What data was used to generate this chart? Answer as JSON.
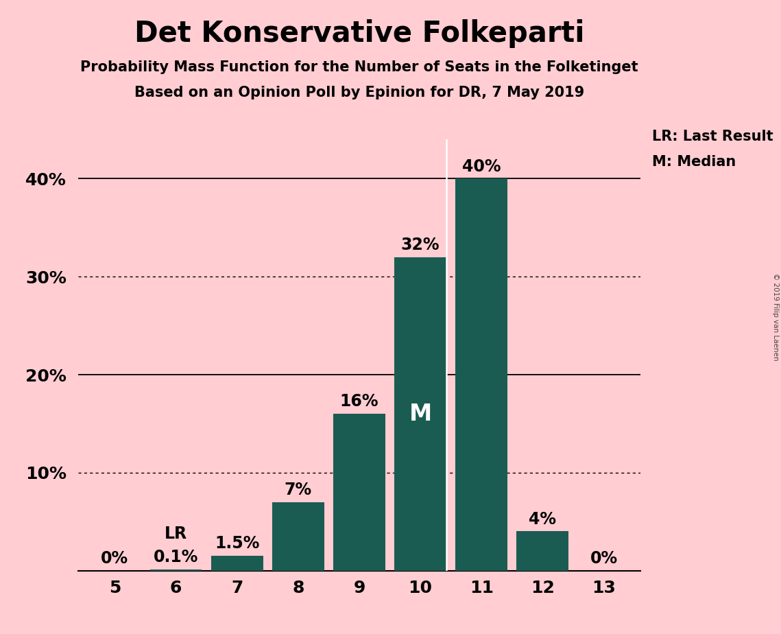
{
  "title": "Det Konservative Folkeparti",
  "subtitle1": "Probability Mass Function for the Number of Seats in the Folketinget",
  "subtitle2": "Based on an Opinion Poll by Epinion for DR, 7 May 2019",
  "copyright": "© 2019 Filip van Laenen",
  "categories": [
    5,
    6,
    7,
    8,
    9,
    10,
    11,
    12,
    13
  ],
  "values": [
    0.0,
    0.1,
    1.5,
    7.0,
    16.0,
    32.0,
    40.0,
    4.0,
    0.0
  ],
  "bar_color": "#1a5c52",
  "background_color": "#ffcdd2",
  "bar_labels": [
    "0%",
    "0.1%",
    "1.5%",
    "7%",
    "16%",
    "32%",
    "40%",
    "4%",
    "0%"
  ],
  "median_bar": 10,
  "lr_bar": 6,
  "ylim_max": 44,
  "ytick_vals": [
    10,
    20,
    30,
    40
  ],
  "ytick_labels": [
    "10%",
    "20%",
    "30%",
    "40%"
  ],
  "solid_gridlines": [
    20,
    40
  ],
  "dotted_gridlines": [
    10,
    30
  ],
  "legend_lr": "LR: Last Result",
  "legend_m": "M: Median",
  "lr_label": "LR",
  "m_label": "M",
  "bar_width": 0.85
}
